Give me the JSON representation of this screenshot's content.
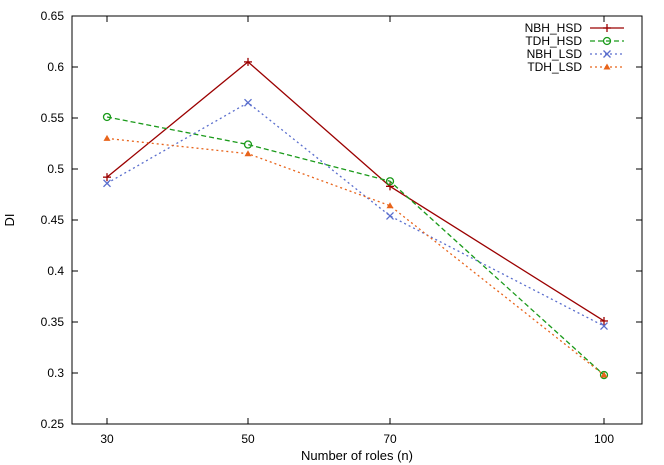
{
  "chart_data": {
    "type": "line",
    "title": "",
    "xlabel": "Number of roles (n)",
    "ylabel": "DI",
    "x": [
      30,
      50,
      70,
      100
    ],
    "x_ticks": [
      30,
      50,
      70,
      100
    ],
    "xlim": [
      30,
      100
    ],
    "ylim": [
      0.25,
      0.65
    ],
    "y_ticks": [
      0.25,
      0.3,
      0.35,
      0.4,
      0.45,
      0.5,
      0.55,
      0.6,
      0.65
    ],
    "grid": false,
    "legend_position": "top-right",
    "series": [
      {
        "name": "NBH_HSD",
        "values": [
          0.492,
          0.605,
          0.483,
          0.351
        ],
        "color": "#9b0000",
        "line_style": "solid",
        "marker": "plus"
      },
      {
        "name": "TDH_HSD",
        "values": [
          0.551,
          0.524,
          0.488,
          0.298
        ],
        "color": "#1a9a1a",
        "line_style": "dashed",
        "marker": "circle"
      },
      {
        "name": "NBH_LSD",
        "values": [
          0.486,
          0.565,
          0.454,
          0.346
        ],
        "color": "#5a6ecd",
        "line_style": "dotted",
        "marker": "x"
      },
      {
        "name": "TDH_LSD",
        "values": [
          0.53,
          0.515,
          0.464,
          0.298
        ],
        "color": "#e8641b",
        "line_style": "dotted",
        "marker": "triangle"
      }
    ]
  }
}
